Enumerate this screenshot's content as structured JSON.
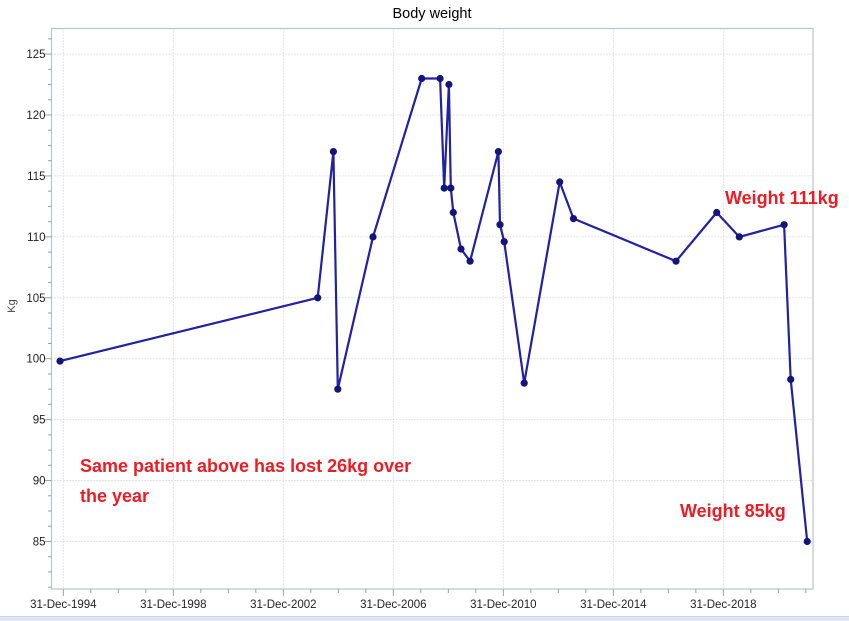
{
  "chart_data": {
    "type": "line",
    "title": "Body weight",
    "xlabel": "",
    "ylabel": "Kg",
    "x_unit": "decimal_year",
    "xlim": [
      1994.57,
      2022.26
    ],
    "ylim": [
      81.1,
      127.1
    ],
    "grid": "dotted, major ticks only",
    "legend": "none",
    "y_major_ticks": [
      85,
      90,
      95,
      100,
      105,
      110,
      115,
      120,
      125
    ],
    "y_minor_step": 1.25,
    "x_minor_step": 1,
    "x_major_ticks": [
      {
        "year": 1995,
        "label": "31-Dec-1994"
      },
      {
        "year": 1999,
        "label": "31-Dec-1998"
      },
      {
        "year": 2003,
        "label": "31-Dec-2002"
      },
      {
        "year": 2007,
        "label": "31-Dec-2006"
      },
      {
        "year": 2011,
        "label": "31-Dec-2010"
      },
      {
        "year": 2015,
        "label": "31-Dec-2014"
      },
      {
        "year": 2019,
        "label": "31-Dec-2018"
      }
    ],
    "series": [
      {
        "name": "Body weight",
        "points": [
          [
            1994.88,
            99.8
          ],
          [
            2004.25,
            105
          ],
          [
            2004.82,
            117
          ],
          [
            2004.98,
            97.5
          ],
          [
            2006.26,
            110
          ],
          [
            2008.03,
            123
          ],
          [
            2008.7,
            123
          ],
          [
            2008.85,
            114
          ],
          [
            2009.02,
            122.5
          ],
          [
            2009.09,
            114
          ],
          [
            2009.18,
            112
          ],
          [
            2009.46,
            109
          ],
          [
            2009.79,
            108
          ],
          [
            2010.82,
            117
          ],
          [
            2010.88,
            111
          ],
          [
            2011.03,
            109.6
          ],
          [
            2011.76,
            98
          ],
          [
            2013.05,
            114.5
          ],
          [
            2013.55,
            111.5
          ],
          [
            2017.28,
            108
          ],
          [
            2018.76,
            112
          ],
          [
            2019.58,
            110
          ],
          [
            2021.21,
            111
          ],
          [
            2021.45,
            98.3
          ],
          [
            2022.05,
            85
          ]
        ]
      }
    ]
  },
  "annotations": {
    "weight_111": "Weight 111kg",
    "weight_85": "Weight 85kg",
    "note_line1": "Same patient above has lost 26kg over",
    "note_line2": "the year"
  },
  "colors": {
    "line": "#2121A3",
    "marker": "#14147B",
    "annotation_red": "#ED1C24",
    "grid": "#C9C9C9",
    "plot_border": "#BCC3C9",
    "tick": "#9AA0A6",
    "tick_label": "#222222",
    "title": "#000000",
    "bottom_strip": "#DEE4F0"
  }
}
